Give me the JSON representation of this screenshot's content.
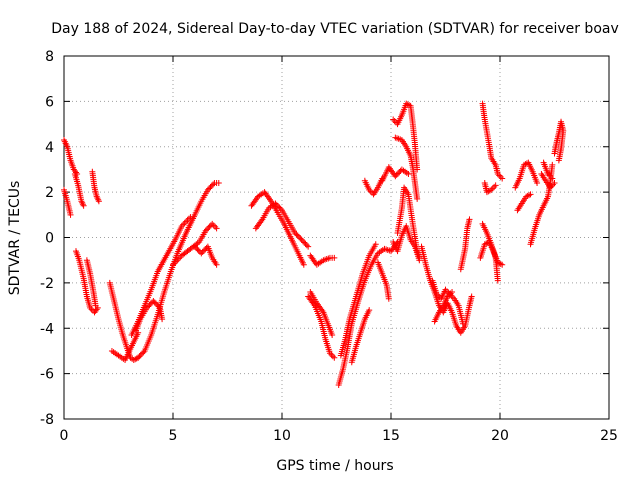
{
  "chart_data": {
    "type": "scatter",
    "title": "Day 188 of 2024, Sidereal Day-to-day VTEC variation (SDTVAR) for receiver boav",
    "xlabel": "GPS time / hours",
    "ylabel": "SDTVAR / TECUs",
    "xlim": [
      0,
      25
    ],
    "ylim": [
      -8,
      8
    ],
    "xticks": [
      "0",
      "5",
      "10",
      "15",
      "20",
      "25"
    ],
    "yticks": [
      "-8",
      "-6",
      "-4",
      "-2",
      "0",
      "2",
      "4",
      "6",
      "8"
    ],
    "grid": true,
    "marker": "+",
    "series_color": "#ff0000",
    "arcs": [
      [
        [
          0.0,
          4.3
        ],
        [
          0.15,
          4.0
        ],
        [
          0.3,
          3.4
        ],
        [
          0.45,
          3.0
        ],
        [
          0.6,
          2.8
        ]
      ],
      [
        [
          0.0,
          2.1
        ],
        [
          0.15,
          1.6
        ],
        [
          0.3,
          1.0
        ]
      ],
      [
        [
          0.5,
          2.8
        ],
        [
          0.65,
          2.3
        ],
        [
          0.8,
          1.6
        ],
        [
          0.9,
          1.4
        ]
      ],
      [
        [
          0.55,
          -0.6
        ],
        [
          0.7,
          -1.0
        ],
        [
          0.9,
          -1.8
        ],
        [
          1.05,
          -2.6
        ],
        [
          1.2,
          -3.1
        ],
        [
          1.4,
          -3.3
        ],
        [
          1.55,
          -3.1
        ]
      ],
      [
        [
          1.05,
          -1.0
        ],
        [
          1.2,
          -1.6
        ],
        [
          1.35,
          -2.4
        ],
        [
          1.45,
          -3.0
        ]
      ],
      [
        [
          1.3,
          2.9
        ],
        [
          1.4,
          2.2
        ],
        [
          1.5,
          1.8
        ],
        [
          1.6,
          1.6
        ]
      ],
      [
        [
          2.1,
          -2.0
        ],
        [
          2.3,
          -2.8
        ],
        [
          2.5,
          -3.6
        ],
        [
          2.7,
          -4.3
        ],
        [
          2.9,
          -4.9
        ],
        [
          3.05,
          -5.3
        ],
        [
          3.2,
          -5.4
        ],
        [
          3.4,
          -5.3
        ]
      ],
      [
        [
          2.2,
          -5.0
        ],
        [
          2.5,
          -5.2
        ],
        [
          2.8,
          -5.4
        ],
        [
          3.0,
          -5.0
        ],
        [
          3.2,
          -4.6
        ],
        [
          3.4,
          -4.2
        ]
      ],
      [
        [
          3.4,
          -5.3
        ],
        [
          3.7,
          -5.0
        ],
        [
          4.0,
          -4.3
        ],
        [
          4.3,
          -3.4
        ],
        [
          4.6,
          -2.4
        ],
        [
          4.9,
          -1.5
        ],
        [
          5.2,
          -0.7
        ],
        [
          5.6,
          0.2
        ],
        [
          6.0,
          1.0
        ],
        [
          6.3,
          1.6
        ],
        [
          6.6,
          2.1
        ],
        [
          6.9,
          2.4
        ],
        [
          7.1,
          2.4
        ]
      ],
      [
        [
          3.1,
          -4.3
        ],
        [
          3.4,
          -3.7
        ],
        [
          3.7,
          -3.0
        ],
        [
          4.0,
          -2.3
        ],
        [
          4.3,
          -1.5
        ],
        [
          4.7,
          -0.8
        ],
        [
          5.1,
          -0.1
        ],
        [
          5.4,
          0.5
        ],
        [
          5.8,
          0.9
        ]
      ],
      [
        [
          3.3,
          -4.1
        ],
        [
          3.5,
          -3.6
        ],
        [
          3.8,
          -3.1
        ],
        [
          4.1,
          -2.8
        ],
        [
          4.4,
          -3.1
        ],
        [
          4.5,
          -3.6
        ]
      ],
      [
        [
          5.0,
          -1.2
        ],
        [
          5.4,
          -0.8
        ],
        [
          5.8,
          -0.5
        ],
        [
          6.2,
          -0.2
        ],
        [
          6.5,
          0.3
        ],
        [
          6.8,
          0.6
        ],
        [
          7.0,
          0.4
        ]
      ],
      [
        [
          6.0,
          -0.4
        ],
        [
          6.3,
          -0.7
        ],
        [
          6.6,
          -0.4
        ],
        [
          6.8,
          -0.9
        ],
        [
          7.0,
          -1.2
        ]
      ],
      [
        [
          8.6,
          1.4
        ],
        [
          8.9,
          1.8
        ],
        [
          9.2,
          2.0
        ],
        [
          9.5,
          1.6
        ],
        [
          9.8,
          1.1
        ],
        [
          10.1,
          0.6
        ],
        [
          10.5,
          -0.2
        ],
        [
          10.8,
          -0.8
        ],
        [
          11.0,
          -1.2
        ]
      ],
      [
        [
          8.8,
          0.4
        ],
        [
          9.1,
          0.8
        ],
        [
          9.4,
          1.3
        ],
        [
          9.7,
          1.5
        ],
        [
          10.0,
          1.2
        ],
        [
          10.3,
          0.7
        ],
        [
          10.6,
          0.2
        ],
        [
          10.9,
          -0.1
        ],
        [
          11.2,
          -0.4
        ]
      ],
      [
        [
          11.3,
          -0.8
        ],
        [
          11.6,
          -1.2
        ],
        [
          11.9,
          -1.0
        ],
        [
          12.2,
          -0.9
        ],
        [
          12.4,
          -0.9
        ]
      ],
      [
        [
          11.2,
          -2.6
        ],
        [
          11.5,
          -3.0
        ],
        [
          11.8,
          -3.7
        ],
        [
          12.0,
          -4.5
        ],
        [
          12.2,
          -5.1
        ],
        [
          12.4,
          -5.3
        ]
      ],
      [
        [
          11.3,
          -2.4
        ],
        [
          11.6,
          -2.9
        ],
        [
          11.9,
          -3.3
        ],
        [
          12.1,
          -3.8
        ],
        [
          12.3,
          -4.3
        ]
      ],
      [
        [
          12.6,
          -6.5
        ],
        [
          12.8,
          -5.8
        ],
        [
          13.0,
          -4.9
        ],
        [
          13.2,
          -3.8
        ],
        [
          13.5,
          -2.8
        ],
        [
          13.8,
          -1.9
        ],
        [
          14.1,
          -1.2
        ],
        [
          14.4,
          -0.7
        ],
        [
          14.7,
          -0.5
        ],
        [
          15.0,
          -0.6
        ],
        [
          15.3,
          -0.2
        ]
      ],
      [
        [
          12.7,
          -5.2
        ],
        [
          12.9,
          -4.5
        ],
        [
          13.1,
          -3.6
        ],
        [
          13.4,
          -2.6
        ],
        [
          13.7,
          -1.6
        ],
        [
          14.0,
          -0.8
        ],
        [
          14.3,
          -0.3
        ]
      ],
      [
        [
          13.2,
          -5.5
        ],
        [
          13.4,
          -4.8
        ],
        [
          13.6,
          -4.2
        ],
        [
          13.8,
          -3.6
        ],
        [
          14.0,
          -3.2
        ]
      ],
      [
        [
          13.8,
          2.5
        ],
        [
          14.0,
          2.1
        ],
        [
          14.2,
          1.9
        ],
        [
          14.4,
          2.2
        ],
        [
          14.6,
          2.6
        ]
      ],
      [
        [
          14.4,
          -1.1
        ],
        [
          14.6,
          -1.6
        ],
        [
          14.8,
          -2.1
        ],
        [
          14.9,
          -2.7
        ]
      ],
      [
        [
          14.6,
          2.5
        ],
        [
          14.9,
          3.1
        ],
        [
          15.2,
          2.7
        ],
        [
          15.5,
          3.0
        ],
        [
          15.8,
          2.8
        ]
      ],
      [
        [
          15.1,
          5.2
        ],
        [
          15.3,
          5.0
        ],
        [
          15.5,
          5.4
        ],
        [
          15.7,
          5.9
        ],
        [
          15.9,
          5.8
        ],
        [
          16.0,
          5.0
        ],
        [
          16.1,
          4.1
        ],
        [
          16.2,
          3.0
        ]
      ],
      [
        [
          15.2,
          4.4
        ],
        [
          15.5,
          4.3
        ],
        [
          15.7,
          4.0
        ],
        [
          15.9,
          3.6
        ],
        [
          16.0,
          3.1
        ],
        [
          16.1,
          2.4
        ],
        [
          16.2,
          1.7
        ]
      ],
      [
        [
          15.3,
          0.2
        ],
        [
          15.5,
          1.3
        ],
        [
          15.6,
          2.2
        ],
        [
          15.8,
          1.9
        ],
        [
          16.0,
          0.6
        ],
        [
          16.2,
          -0.6
        ],
        [
          16.3,
          -0.9
        ]
      ],
      [
        [
          15.1,
          -0.2
        ],
        [
          15.3,
          -0.6
        ],
        [
          15.5,
          0.1
        ],
        [
          15.7,
          0.5
        ],
        [
          15.9,
          -0.1
        ],
        [
          16.1,
          -0.4
        ],
        [
          16.3,
          -1.0
        ]
      ],
      [
        [
          16.4,
          -0.4
        ],
        [
          16.6,
          -1.2
        ],
        [
          16.8,
          -1.9
        ],
        [
          17.0,
          -2.4
        ],
        [
          17.2,
          -3.0
        ],
        [
          17.4,
          -3.3
        ],
        [
          17.6,
          -2.9
        ],
        [
          17.8,
          -3.3
        ],
        [
          18.0,
          -3.9
        ],
        [
          18.2,
          -4.2
        ],
        [
          18.4,
          -3.9
        ],
        [
          18.6,
          -3.0
        ],
        [
          18.7,
          -2.6
        ]
      ],
      [
        [
          16.9,
          -1.9
        ],
        [
          17.1,
          -2.5
        ],
        [
          17.3,
          -2.7
        ],
        [
          17.5,
          -2.3
        ],
        [
          17.7,
          -2.5
        ],
        [
          17.9,
          -2.7
        ],
        [
          18.1,
          -3.0
        ],
        [
          18.3,
          -3.8
        ]
      ],
      [
        [
          17.0,
          -3.7
        ],
        [
          17.2,
          -3.3
        ],
        [
          17.4,
          -3.0
        ],
        [
          17.6,
          -2.6
        ],
        [
          17.8,
          -2.4
        ]
      ],
      [
        [
          18.2,
          -1.4
        ],
        [
          18.4,
          -0.5
        ],
        [
          18.5,
          0.4
        ],
        [
          18.6,
          0.8
        ]
      ],
      [
        [
          19.1,
          -0.9
        ],
        [
          19.3,
          -0.3
        ],
        [
          19.5,
          -0.2
        ],
        [
          19.7,
          -0.6
        ],
        [
          19.9,
          -1.1
        ],
        [
          20.1,
          -1.2
        ]
      ],
      [
        [
          19.2,
          0.6
        ],
        [
          19.4,
          0.2
        ],
        [
          19.6,
          -0.3
        ],
        [
          19.8,
          -0.9
        ],
        [
          19.9,
          -1.9
        ]
      ],
      [
        [
          19.2,
          5.9
        ],
        [
          19.3,
          5.2
        ],
        [
          19.5,
          4.1
        ],
        [
          19.6,
          3.5
        ],
        [
          19.8,
          3.2
        ],
        [
          19.9,
          2.8
        ],
        [
          20.1,
          2.6
        ]
      ],
      [
        [
          19.3,
          2.4
        ],
        [
          19.4,
          2.0
        ],
        [
          19.6,
          2.1
        ],
        [
          19.8,
          2.3
        ]
      ],
      [
        [
          20.7,
          2.2
        ],
        [
          20.9,
          2.6
        ],
        [
          21.1,
          3.2
        ],
        [
          21.3,
          3.3
        ],
        [
          21.5,
          2.9
        ],
        [
          21.7,
          2.4
        ]
      ],
      [
        [
          20.8,
          1.2
        ],
        [
          21.0,
          1.5
        ],
        [
          21.2,
          1.8
        ],
        [
          21.4,
          1.9
        ]
      ],
      [
        [
          21.4,
          -0.3
        ],
        [
          21.6,
          0.4
        ],
        [
          21.8,
          1.0
        ],
        [
          22.0,
          1.4
        ],
        [
          22.2,
          1.8
        ],
        [
          22.3,
          2.4
        ],
        [
          22.4,
          3.2
        ]
      ],
      [
        [
          21.9,
          2.8
        ],
        [
          22.1,
          2.5
        ],
        [
          22.3,
          2.2
        ],
        [
          22.5,
          2.4
        ]
      ],
      [
        [
          22.0,
          3.3
        ],
        [
          22.2,
          2.8
        ],
        [
          22.4,
          2.6
        ]
      ],
      [
        [
          22.5,
          3.7
        ],
        [
          22.6,
          4.2
        ],
        [
          22.7,
          4.6
        ],
        [
          22.8,
          5.1
        ],
        [
          22.9,
          4.7
        ],
        [
          22.8,
          3.9
        ],
        [
          22.7,
          3.4
        ]
      ]
    ]
  }
}
